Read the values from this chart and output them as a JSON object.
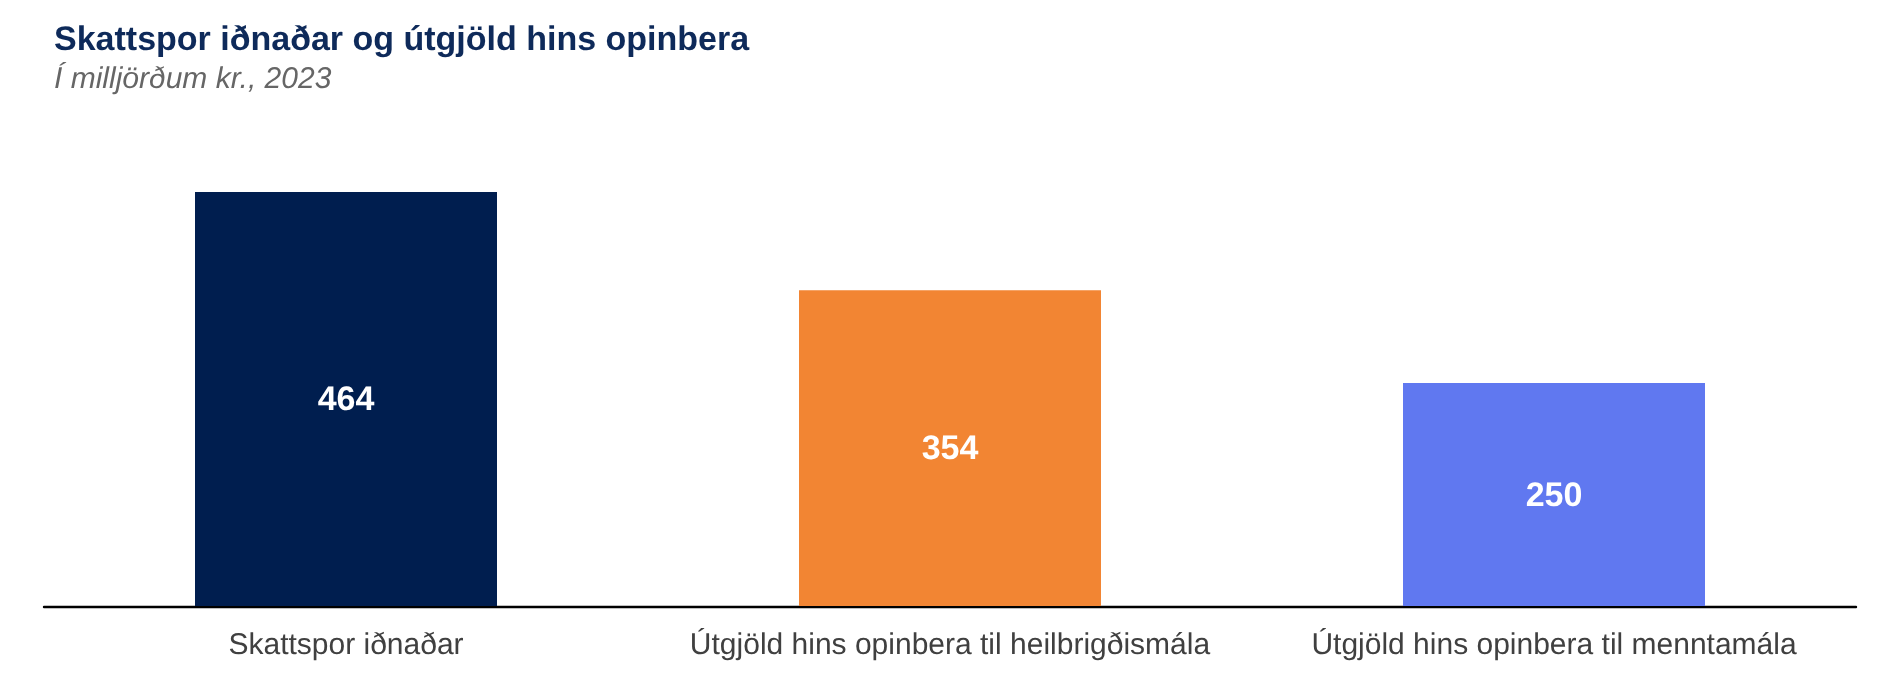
{
  "chart_data": {
    "type": "bar",
    "title": "Skattspor iðnaðar og útgjöld hins opinbera",
    "subtitle": "Í milljörðum kr., 2023",
    "categories": [
      "Skattspor iðnaðar",
      "Útgjöld hins opinbera til heilbrigðismála",
      "Útgjöld hins opinbera til menntamála"
    ],
    "values": [
      464,
      354,
      250
    ],
    "colors": [
      "#001e4f",
      "#f28533",
      "#6078f0"
    ],
    "data_labels": true
  }
}
